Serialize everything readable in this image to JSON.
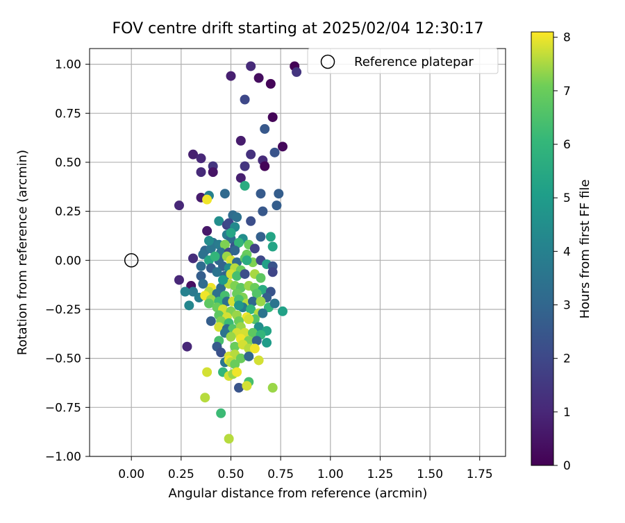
{
  "chart_data": {
    "type": "scatter",
    "title": "FOV centre drift starting at 2025/02/04 12:30:17",
    "xlabel": "Angular distance from reference (arcmin)",
    "ylabel": "Rotation from reference (arcmin)",
    "xlim": [
      -0.21,
      1.88
    ],
    "ylim": [
      -1.0,
      1.08
    ],
    "xticks": [
      "0.00",
      "0.25",
      "0.50",
      "0.75",
      "1.00",
      "1.25",
      "1.50",
      "1.75"
    ],
    "xtick_values": [
      0,
      0.25,
      0.5,
      0.75,
      1.0,
      1.25,
      1.5,
      1.75
    ],
    "yticks": [
      "−1.00",
      "−0.75",
      "−0.50",
      "−0.25",
      "0.00",
      "0.25",
      "0.50",
      "0.75",
      "1.00"
    ],
    "ytick_values": [
      -1.0,
      -0.75,
      -0.5,
      -0.25,
      0,
      0.25,
      0.5,
      0.75,
      1.0
    ],
    "grid": true,
    "legend": {
      "placement": "top-right",
      "entries": [
        "Reference platepar"
      ]
    },
    "colorbar": {
      "label": "Hours from first FF file",
      "ticks": [
        "0",
        "1",
        "2",
        "3",
        "4",
        "5",
        "6",
        "7",
        "8"
      ],
      "tick_values": [
        0,
        1,
        2,
        3,
        4,
        5,
        6,
        7,
        8
      ],
      "range": [
        0,
        8.1
      ],
      "colormap": "viridis"
    },
    "reference_point": {
      "x": 0.0,
      "y": 0.0
    },
    "series": [
      {
        "points": [
          [
            0.82,
            0.99,
            0.05
          ],
          [
            0.83,
            0.96,
            1.4
          ],
          [
            0.6,
            0.99,
            1.1
          ],
          [
            0.5,
            0.94,
            0.8
          ],
          [
            0.64,
            0.93,
            0.3
          ],
          [
            0.7,
            0.9,
            0.1
          ],
          [
            0.57,
            0.82,
            2.0
          ],
          [
            0.71,
            0.73,
            0.1
          ],
          [
            0.67,
            0.67,
            2.5
          ],
          [
            0.55,
            0.61,
            0.7
          ],
          [
            0.76,
            0.58,
            0.2
          ],
          [
            0.72,
            0.55,
            2.4
          ],
          [
            0.31,
            0.54,
            0.8
          ],
          [
            0.35,
            0.52,
            1.0
          ],
          [
            0.6,
            0.54,
            1.3
          ],
          [
            0.66,
            0.51,
            1.1
          ],
          [
            0.57,
            0.48,
            1.4
          ],
          [
            0.67,
            0.48,
            0.1
          ],
          [
            0.41,
            0.48,
            1.4
          ],
          [
            0.35,
            0.45,
            1.1
          ],
          [
            0.41,
            0.45,
            0.5
          ],
          [
            0.55,
            0.42,
            0.8
          ],
          [
            0.57,
            0.38,
            5.6
          ],
          [
            0.24,
            0.28,
            1.0
          ],
          [
            0.35,
            0.32,
            0.7
          ],
          [
            0.39,
            0.33,
            4.0
          ],
          [
            0.38,
            0.31,
            8.0
          ],
          [
            0.47,
            0.34,
            3.1
          ],
          [
            0.65,
            0.34,
            2.6
          ],
          [
            0.74,
            0.34,
            2.7
          ],
          [
            0.73,
            0.28,
            2.7
          ],
          [
            0.66,
            0.25,
            2.5
          ],
          [
            0.51,
            0.23,
            3.2
          ],
          [
            0.53,
            0.22,
            3.4
          ],
          [
            0.44,
            0.2,
            4.5
          ],
          [
            0.6,
            0.2,
            2.2
          ],
          [
            0.48,
            0.18,
            1.8
          ],
          [
            0.49,
            0.19,
            2.0
          ],
          [
            0.52,
            0.17,
            4.3
          ],
          [
            0.38,
            0.15,
            0.6
          ],
          [
            0.48,
            0.13,
            3.8
          ],
          [
            0.5,
            0.11,
            3.2
          ],
          [
            0.56,
            0.11,
            4.5
          ],
          [
            0.65,
            0.12,
            2.8
          ],
          [
            0.7,
            0.12,
            5.3
          ],
          [
            0.41,
            0.09,
            3.5
          ],
          [
            0.44,
            0.08,
            3.8
          ],
          [
            0.47,
            0.08,
            7.2
          ],
          [
            0.52,
            0.07,
            2.4
          ],
          [
            0.54,
            0.09,
            6.0
          ],
          [
            0.59,
            0.08,
            7.0
          ],
          [
            0.62,
            0.06,
            1.8
          ],
          [
            0.71,
            0.07,
            5.3
          ],
          [
            0.37,
            0.05,
            3.0
          ],
          [
            0.4,
            0.06,
            3.6
          ],
          [
            0.45,
            0.04,
            3.5
          ],
          [
            0.49,
            0.04,
            2.0
          ],
          [
            0.52,
            0.05,
            3.0
          ],
          [
            0.58,
            0.03,
            7.0
          ],
          [
            0.36,
            0.03,
            3.4
          ],
          [
            0.31,
            0.01,
            1.2
          ],
          [
            0.39,
            0.0,
            5.4
          ],
          [
            0.44,
            0.0,
            3.0
          ],
          [
            0.48,
            0.02,
            7.4
          ],
          [
            0.5,
            0.0,
            7.8
          ],
          [
            0.53,
            -0.01,
            3.1
          ],
          [
            0.57,
            0.01,
            6.8
          ],
          [
            0.61,
            -0.01,
            7.2
          ],
          [
            0.65,
            0.0,
            2.0
          ],
          [
            0.68,
            -0.02,
            5.2
          ],
          [
            0.71,
            -0.03,
            2.4
          ],
          [
            0.35,
            -0.03,
            3.2
          ],
          [
            0.4,
            -0.04,
            2.6
          ],
          [
            0.46,
            -0.03,
            2.9
          ],
          [
            0.49,
            -0.04,
            4.5
          ],
          [
            0.52,
            -0.04,
            7.6
          ],
          [
            0.55,
            -0.05,
            7.0
          ],
          [
            0.43,
            -0.06,
            3.5
          ],
          [
            0.47,
            -0.08,
            3.0
          ],
          [
            0.5,
            -0.07,
            7.8
          ],
          [
            0.53,
            -0.08,
            6.4
          ],
          [
            0.57,
            -0.07,
            2.2
          ],
          [
            0.62,
            -0.07,
            7.5
          ],
          [
            0.35,
            -0.08,
            2.7
          ],
          [
            0.65,
            -0.09,
            6.8
          ],
          [
            0.71,
            -0.06,
            1.9
          ],
          [
            0.24,
            -0.1,
            1.0
          ],
          [
            0.3,
            -0.13,
            0.4
          ],
          [
            0.4,
            -0.14,
            8.0
          ],
          [
            0.45,
            -0.14,
            3.2
          ],
          [
            0.49,
            -0.12,
            7.6
          ],
          [
            0.52,
            -0.13,
            7.2
          ],
          [
            0.55,
            -0.14,
            6.8
          ],
          [
            0.59,
            -0.13,
            7.4
          ],
          [
            0.62,
            -0.14,
            7.0
          ],
          [
            0.66,
            -0.15,
            5.6
          ],
          [
            0.7,
            -0.16,
            2.4
          ],
          [
            0.39,
            -0.16,
            7.6
          ],
          [
            0.43,
            -0.17,
            3.4
          ],
          [
            0.47,
            -0.18,
            6.4
          ],
          [
            0.53,
            -0.17,
            7.0
          ],
          [
            0.56,
            -0.19,
            7.2
          ],
          [
            0.63,
            -0.17,
            6.6
          ],
          [
            0.68,
            -0.19,
            2.7
          ],
          [
            0.31,
            -0.16,
            3.7
          ],
          [
            0.34,
            -0.19,
            3.9
          ],
          [
            0.37,
            -0.18,
            8.0
          ],
          [
            0.4,
            -0.2,
            7.4
          ],
          [
            0.44,
            -0.21,
            6.2
          ],
          [
            0.48,
            -0.21,
            3.3
          ],
          [
            0.51,
            -0.21,
            7.8
          ],
          [
            0.54,
            -0.2,
            6.5
          ],
          [
            0.58,
            -0.22,
            7.6
          ],
          [
            0.61,
            -0.21,
            3.0
          ],
          [
            0.65,
            -0.21,
            7.4
          ],
          [
            0.69,
            -0.24,
            6.0
          ],
          [
            0.72,
            -0.22,
            3.5
          ],
          [
            0.76,
            -0.26,
            5.2
          ],
          [
            0.27,
            -0.16,
            4.0
          ],
          [
            0.29,
            -0.23,
            4.2
          ],
          [
            0.39,
            -0.22,
            6.8
          ],
          [
            0.43,
            -0.24,
            7.0
          ],
          [
            0.46,
            -0.25,
            7.8
          ],
          [
            0.5,
            -0.26,
            7.2
          ],
          [
            0.56,
            -0.24,
            3.8
          ],
          [
            0.6,
            -0.25,
            6.0
          ],
          [
            0.64,
            -0.27,
            7.6
          ],
          [
            0.66,
            -0.27,
            3.5
          ],
          [
            0.44,
            -0.28,
            6.8
          ],
          [
            0.48,
            -0.29,
            7.8
          ],
          [
            0.53,
            -0.28,
            7.4
          ],
          [
            0.58,
            -0.29,
            8.0
          ],
          [
            0.62,
            -0.3,
            6.6
          ],
          [
            0.4,
            -0.31,
            2.7
          ],
          [
            0.45,
            -0.31,
            7.2
          ],
          [
            0.49,
            -0.32,
            6.2
          ],
          [
            0.54,
            -0.31,
            7.0
          ],
          [
            0.59,
            -0.3,
            7.8
          ],
          [
            0.64,
            -0.34,
            4.5
          ],
          [
            0.44,
            -0.34,
            7.8
          ],
          [
            0.48,
            -0.35,
            3.2
          ],
          [
            0.51,
            -0.35,
            6.6
          ],
          [
            0.55,
            -0.34,
            7.4
          ],
          [
            0.68,
            -0.36,
            5.3
          ],
          [
            0.47,
            -0.37,
            3.5
          ],
          [
            0.53,
            -0.37,
            7.8
          ],
          [
            0.57,
            -0.37,
            7.8
          ],
          [
            0.61,
            -0.37,
            6.8
          ],
          [
            0.65,
            -0.38,
            6.0
          ],
          [
            0.44,
            -0.41,
            6.4
          ],
          [
            0.5,
            -0.39,
            7.4
          ],
          [
            0.55,
            -0.4,
            8.0
          ],
          [
            0.59,
            -0.41,
            7.2
          ],
          [
            0.63,
            -0.41,
            2.8
          ],
          [
            0.68,
            -0.42,
            5.0
          ],
          [
            0.28,
            -0.44,
            1.0
          ],
          [
            0.43,
            -0.44,
            2.6
          ],
          [
            0.52,
            -0.44,
            7.0
          ],
          [
            0.56,
            -0.43,
            7.8
          ],
          [
            0.59,
            -0.45,
            7.6
          ],
          [
            0.62,
            -0.45,
            8.0
          ],
          [
            0.45,
            -0.47,
            2.3
          ],
          [
            0.49,
            -0.49,
            7.8
          ],
          [
            0.52,
            -0.48,
            7.6
          ],
          [
            0.55,
            -0.5,
            7.0
          ],
          [
            0.59,
            -0.49,
            3.0
          ],
          [
            0.64,
            -0.51,
            7.8
          ],
          [
            0.47,
            -0.52,
            3.6
          ],
          [
            0.49,
            -0.51,
            8.0
          ],
          [
            0.5,
            -0.52,
            7.6
          ],
          [
            0.52,
            -0.53,
            7.0
          ],
          [
            0.38,
            -0.57,
            7.8
          ],
          [
            0.46,
            -0.57,
            6.0
          ],
          [
            0.49,
            -0.59,
            7.8
          ],
          [
            0.51,
            -0.58,
            7.4
          ],
          [
            0.53,
            -0.57,
            8.0
          ],
          [
            0.59,
            -0.62,
            6.4
          ],
          [
            0.54,
            -0.65,
            2.4
          ],
          [
            0.58,
            -0.64,
            7.8
          ],
          [
            0.71,
            -0.65,
            7.4
          ],
          [
            0.37,
            -0.7,
            7.6
          ],
          [
            0.45,
            -0.78,
            6.2
          ],
          [
            0.49,
            -0.91,
            7.6
          ],
          [
            0.39,
            0.1,
            4.4
          ],
          [
            0.42,
            0.02,
            6.0
          ],
          [
            0.36,
            -0.12,
            3.2
          ],
          [
            0.58,
            0.0,
            5.6
          ],
          [
            0.54,
            -0.23,
            4.8
          ],
          [
            0.46,
            -0.1,
            5.0
          ],
          [
            0.5,
            0.14,
            5.4
          ]
        ]
      }
    ]
  }
}
